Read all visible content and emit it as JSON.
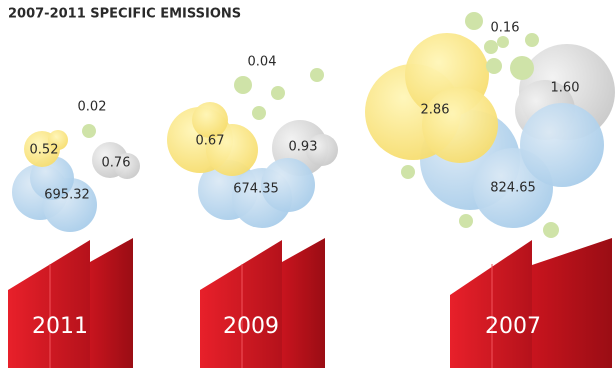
{
  "title": "2007-2011 SPECIFIC EMISSIONS",
  "groups": [
    {
      "year": "2011",
      "blue": "695.32",
      "yellow": "0.52",
      "gray": "0.76",
      "green": "0.02"
    },
    {
      "year": "2009",
      "blue": "674.35",
      "yellow": "0.67",
      "gray": "0.93",
      "green": "0.04"
    },
    {
      "year": "2007",
      "blue": "824.65",
      "yellow": "2.86",
      "gray": "1.60",
      "green": "0.16"
    }
  ]
}
